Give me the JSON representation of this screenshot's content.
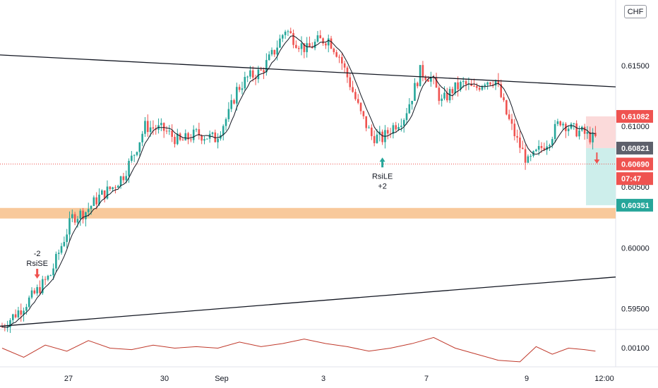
{
  "currency": "CHF",
  "colors": {
    "up": "#26a69a",
    "down": "#ef5350",
    "ma_line": "#131722",
    "trend_line": "#131722",
    "support_zone": "#f7c08a",
    "rsi_line": "#c0392b",
    "long_target_zone": "#cdeeeb",
    "long_stop_zone": "#fbdada",
    "last_price_line": "#ef5350"
  },
  "chart_data": {
    "type": "candlestick",
    "instrument_currency": "CHF",
    "x_ticks": [
      "27",
      "30",
      "Sep",
      "3",
      "7",
      "9",
      "12:00"
    ],
    "y_ticks": [
      "0.61500",
      "0.61000",
      "0.60500",
      "0.60000",
      "0.59500"
    ],
    "y_range": [
      0.5934,
      0.6204
    ],
    "price_path": [
      [
        0,
        0.5935
      ],
      [
        7,
        0.595
      ],
      [
        12,
        0.5962
      ],
      [
        18,
        0.5978
      ],
      [
        22,
        0.6002
      ],
      [
        26,
        0.6025
      ],
      [
        31,
        0.603
      ],
      [
        36,
        0.6042
      ],
      [
        41,
        0.605
      ],
      [
        45,
        0.606
      ],
      [
        49,
        0.6078
      ],
      [
        53,
        0.61
      ],
      [
        60,
        0.6097
      ],
      [
        66,
        0.6087
      ],
      [
        72,
        0.6094
      ],
      [
        79,
        0.609
      ],
      [
        84,
        0.611
      ],
      [
        87,
        0.613
      ],
      [
        91,
        0.614
      ],
      [
        96,
        0.6145
      ],
      [
        101,
        0.6162
      ],
      [
        105,
        0.618
      ],
      [
        109,
        0.617
      ],
      [
        113,
        0.6163
      ],
      [
        117,
        0.617
      ],
      [
        121,
        0.6172
      ],
      [
        125,
        0.6158
      ],
      [
        129,
        0.6135
      ],
      [
        133,
        0.611
      ],
      [
        137,
        0.6092
      ],
      [
        141,
        0.609
      ],
      [
        145,
        0.61
      ],
      [
        149,
        0.6108
      ],
      [
        152,
        0.6125
      ],
      [
        155,
        0.6145
      ],
      [
        159,
        0.614
      ],
      [
        163,
        0.612
      ],
      [
        167,
        0.613
      ],
      [
        171,
        0.6135
      ],
      [
        175,
        0.613
      ],
      [
        179,
        0.6138
      ],
      [
        183,
        0.6138
      ],
      [
        187,
        0.611
      ],
      [
        191,
        0.6088
      ],
      [
        195,
        0.607
      ],
      [
        199,
        0.608
      ],
      [
        203,
        0.609
      ],
      [
        207,
        0.6105
      ],
      [
        211,
        0.6098
      ],
      [
        215,
        0.6095
      ],
      [
        219,
        0.609
      ]
    ],
    "trend_lines": [
      {
        "name": "resistance",
        "points": [
          [
            "start",
            0.61588
          ],
          [
            "end",
            0.61325
          ]
        ]
      },
      {
        "name": "support",
        "points": [
          [
            "start",
            0.59355
          ],
          [
            "end",
            0.5976
          ]
        ]
      }
    ],
    "support_zone": [
      0.60238,
      0.60282
    ],
    "horizontal_levels": [
      {
        "label": "0.61082",
        "value": 0.61082,
        "color": "#ef5350"
      },
      {
        "label": "0.60821",
        "value": 0.60821,
        "color": "#5d606b"
      },
      {
        "label": "0.60690",
        "value": 0.6069,
        "color": "#ef5350"
      },
      {
        "label": "07:47",
        "value": 0.6057,
        "color": "#ef5350"
      },
      {
        "label": "0.60351",
        "value": 0.60351,
        "color": "#26a69a"
      }
    ],
    "signals": [
      {
        "name": "RsiSE",
        "qty": "-2",
        "direction": "sell",
        "bar": 13
      },
      {
        "name": "RsiLE",
        "qty": "+2",
        "direction": "buy",
        "bar": 141
      }
    ],
    "indicator": {
      "name": "RSI",
      "y_tick": "0.00100",
      "path": [
        [
          0,
          0.5
        ],
        [
          8,
          0.2
        ],
        [
          16,
          0.6
        ],
        [
          24,
          0.4
        ],
        [
          32,
          0.75
        ],
        [
          40,
          0.5
        ],
        [
          48,
          0.45
        ],
        [
          56,
          0.6
        ],
        [
          64,
          0.5
        ],
        [
          72,
          0.55
        ],
        [
          80,
          0.5
        ],
        [
          88,
          0.7
        ],
        [
          96,
          0.55
        ],
        [
          104,
          0.65
        ],
        [
          112,
          0.8
        ],
        [
          120,
          0.65
        ],
        [
          128,
          0.55
        ],
        [
          136,
          0.4
        ],
        [
          144,
          0.5
        ],
        [
          152,
          0.65
        ],
        [
          160,
          0.85
        ],
        [
          168,
          0.5
        ],
        [
          176,
          0.3
        ],
        [
          184,
          0.1
        ],
        [
          192,
          0.05
        ],
        [
          198,
          0.55
        ],
        [
          204,
          0.3
        ],
        [
          210,
          0.5
        ],
        [
          216,
          0.45
        ],
        [
          220,
          0.4
        ]
      ]
    }
  }
}
